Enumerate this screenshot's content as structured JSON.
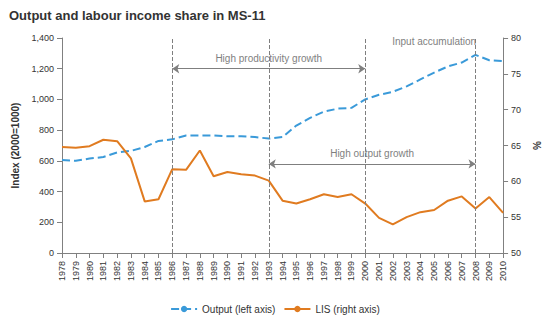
{
  "chart_data": {
    "type": "line",
    "title": "Output and labour income share in MS-11",
    "y_label": "Index (2000=1000)",
    "y2_label": "%",
    "categories": [
      "1978",
      "1979",
      "1980",
      "1981",
      "1982",
      "1983",
      "1984",
      "1985",
      "1986",
      "1987",
      "1988",
      "1989",
      "1990",
      "1991",
      "1992",
      "1993",
      "1994",
      "1995",
      "1996",
      "1997",
      "1998",
      "1999",
      "2000",
      "2001",
      "2002",
      "2003",
      "2004",
      "2005",
      "2006",
      "2007",
      "2008",
      "2009",
      "2010"
    ],
    "series": [
      {
        "name": "Output (left axis)",
        "color": "#3a9ad9",
        "line_style": "dashed",
        "axis": "y",
        "values": [
          605,
          600,
          615,
          625,
          655,
          665,
          690,
          730,
          740,
          765,
          765,
          765,
          760,
          760,
          755,
          745,
          755,
          830,
          880,
          920,
          940,
          945,
          1000,
          1030,
          1050,
          1085,
          1130,
          1175,
          1215,
          1240,
          1290,
          1255,
          1250
        ]
      },
      {
        "name": "LIS (right axis)",
        "color": "#e07b20",
        "line_style": "solid",
        "axis": "y2",
        "values": [
          64.8,
          64.7,
          64.9,
          65.8,
          65.6,
          63.2,
          57.2,
          57.5,
          61.7,
          61.6,
          64.3,
          60.7,
          61.3,
          61.0,
          60.8,
          60.1,
          57.3,
          56.9,
          57.5,
          58.2,
          57.8,
          58.2,
          56.9,
          54.9,
          54.0,
          55.0,
          55.7,
          56.0,
          57.3,
          57.9,
          56.2,
          57.8,
          55.6
        ]
      }
    ],
    "ylim": [
      0,
      1400
    ],
    "yticks": [
      0,
      200,
      400,
      600,
      800,
      1000,
      1200,
      1400
    ],
    "y2lim": [
      50,
      80
    ],
    "y2ticks": [
      50,
      55,
      60,
      65,
      70,
      75,
      80
    ],
    "grid": false,
    "legend": "bottom",
    "vlines": [
      "1986",
      "1993",
      "2000",
      "2008"
    ],
    "annotations": [
      {
        "text": "High productivity growth",
        "from": "1986",
        "to": "2000",
        "y": 1200
      },
      {
        "text": "High output growth",
        "from": "1993",
        "to": "2008",
        "y": 580
      },
      {
        "text": "Input accumulation",
        "at": "2005",
        "y": 1380
      }
    ]
  }
}
